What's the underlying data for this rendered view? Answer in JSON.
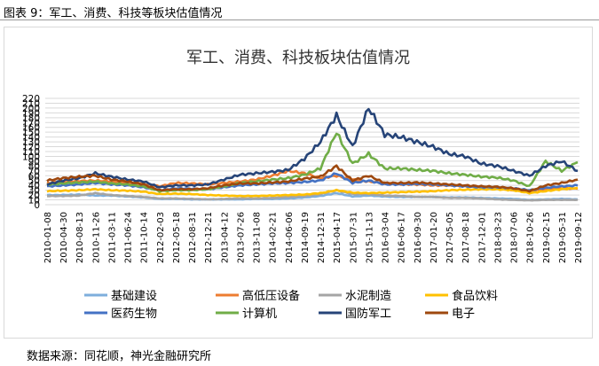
{
  "figure": {
    "caption": "图表 9：军工、消费、科技等板块估值情况",
    "source": "数据来源：同花顺，神光金融研究所"
  },
  "chart_data": {
    "type": "line",
    "title": "军工、消费、科技板块估值情况",
    "xlabel": "",
    "ylabel": "",
    "ylim": [
      0,
      220
    ],
    "yticks": [
      0,
      10,
      20,
      30,
      40,
      50,
      60,
      70,
      80,
      90,
      100,
      110,
      120,
      130,
      140,
      150,
      160,
      170,
      180,
      190,
      200,
      210,
      220
    ],
    "grid": true,
    "legend_position": "bottom",
    "x": [
      "2010-01-08",
      "2010-04-30",
      "2010-08-13",
      "2010-11-26",
      "2011-03-11",
      "2011-06-24",
      "2011-10-14",
      "2012-02-03",
      "2012-05-18",
      "2012-08-31",
      "2012-12-21",
      "2013-04-12",
      "2013-07-26",
      "2013-11-08",
      "2014-02-21",
      "2014-06-06",
      "2014-09-19",
      "2014-12-31",
      "2015-04-17",
      "2015-07-31",
      "2015-11-13",
      "2016-03-04",
      "2016-06-17",
      "2016-09-30",
      "2017-01-20",
      "2017-05-05",
      "2017-08-18",
      "2017-12-01",
      "2018-03-23",
      "2018-07-06",
      "2018-10-26",
      "2019-02-15",
      "2019-05-31",
      "2019-09-12"
    ],
    "series": [
      {
        "name": "基础建设",
        "color": "#7eaedc",
        "values": [
          20,
          20,
          21,
          19,
          19,
          17,
          15,
          12,
          12,
          11,
          11,
          11,
          11,
          12,
          12,
          13,
          15,
          18,
          24,
          17,
          19,
          17,
          16,
          16,
          16,
          15,
          15,
          14,
          13,
          12,
          10,
          11,
          12,
          11
        ]
      },
      {
        "name": "高低压设备",
        "color": "#ed7d31",
        "values": [
          45,
          47,
          49,
          50,
          48,
          46,
          43,
          38,
          45,
          44,
          42,
          45,
          48,
          52,
          60,
          70,
          65,
          55,
          60,
          52,
          48,
          45,
          42,
          42,
          40,
          40,
          38,
          36,
          34,
          30,
          28,
          32,
          34,
          33
        ]
      },
      {
        "name": "水泥制造",
        "color": "#a5a5a5",
        "values": [
          18,
          18,
          19,
          24,
          20,
          18,
          16,
          13,
          13,
          12,
          11,
          12,
          13,
          13,
          14,
          16,
          18,
          22,
          30,
          22,
          22,
          19,
          18,
          16,
          16,
          14,
          14,
          13,
          11,
          10,
          9,
          10,
          10,
          10
        ]
      },
      {
        "name": "食品饮料",
        "color": "#ffc000",
        "values": [
          28,
          29,
          30,
          32,
          30,
          29,
          27,
          22,
          23,
          22,
          20,
          19,
          18,
          18,
          19,
          20,
          21,
          24,
          30,
          25,
          24,
          25,
          26,
          27,
          28,
          30,
          31,
          32,
          32,
          30,
          24,
          28,
          32,
          35
        ]
      },
      {
        "name": "医药生物",
        "color": "#4472c4",
        "values": [
          38,
          40,
          42,
          45,
          42,
          40,
          36,
          30,
          34,
          33,
          32,
          36,
          40,
          42,
          44,
          45,
          47,
          50,
          65,
          45,
          50,
          42,
          42,
          43,
          42,
          40,
          38,
          36,
          36,
          34,
          30,
          35,
          38,
          40
        ]
      },
      {
        "name": "计算机",
        "color": "#70ad47",
        "values": [
          42,
          44,
          46,
          48,
          44,
          42,
          38,
          28,
          30,
          30,
          32,
          38,
          45,
          48,
          52,
          55,
          62,
          75,
          150,
          85,
          105,
          75,
          75,
          72,
          70,
          65,
          62,
          58,
          56,
          50,
          38,
          90,
          70,
          88
        ]
      },
      {
        "name": "国防军工",
        "color": "#264478",
        "values": [
          42,
          50,
          55,
          65,
          58,
          52,
          48,
          36,
          40,
          40,
          42,
          52,
          62,
          65,
          68,
          72,
          95,
          130,
          185,
          120,
          200,
          145,
          140,
          130,
          120,
          105,
          100,
          85,
          80,
          70,
          60,
          80,
          90,
          70
        ]
      },
      {
        "name": "电子",
        "color": "#9e480e",
        "values": [
          50,
          55,
          58,
          60,
          52,
          48,
          42,
          30,
          32,
          32,
          34,
          40,
          44,
          44,
          46,
          48,
          54,
          58,
          80,
          50,
          60,
          45,
          45,
          46,
          44,
          42,
          40,
          38,
          37,
          34,
          28,
          40,
          45,
          52
        ]
      }
    ]
  }
}
